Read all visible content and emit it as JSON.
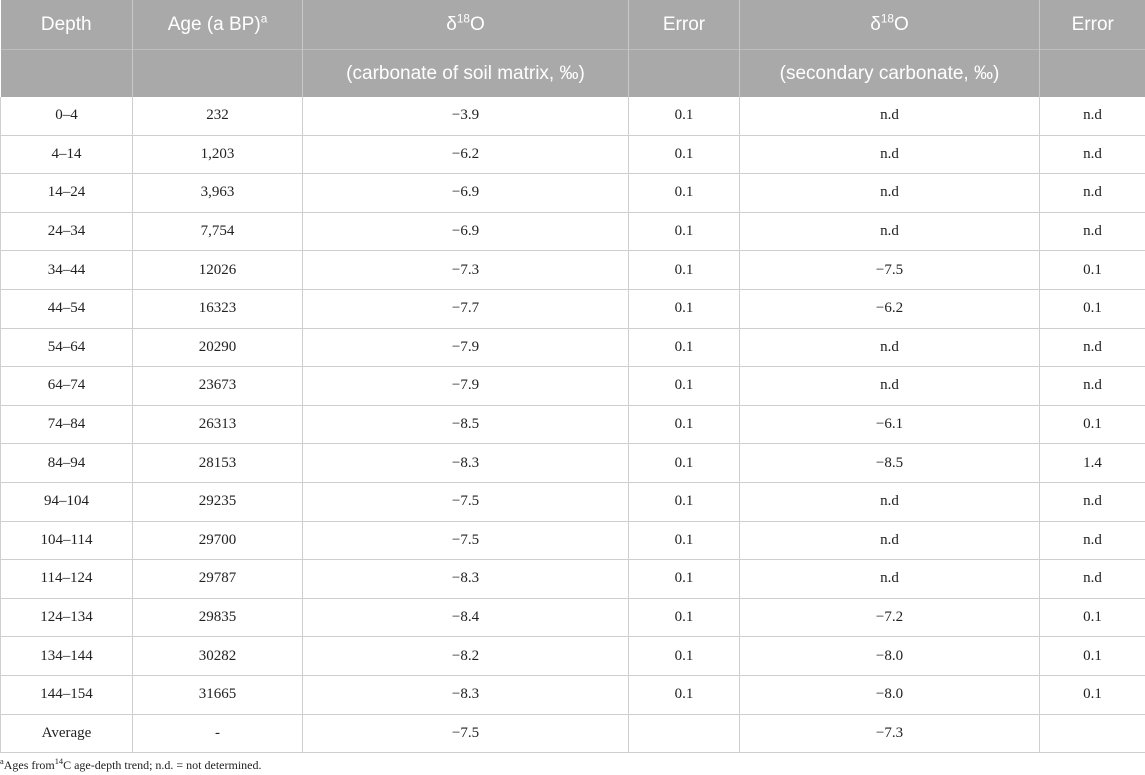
{
  "header": {
    "depth": "Depth",
    "age": "Age (a BP)",
    "age_sup": "a",
    "delta_symbol": "δ",
    "delta_sup": "18",
    "delta_tail": "O",
    "error": "Error",
    "sub_soil": "(carbonate of soil matrix, ‰)",
    "sub_secondary": "(secondary carbonate, ‰)"
  },
  "rows": [
    {
      "depth": "0–4",
      "age": "232",
      "soil": "−3.9",
      "soil_err": "0.1",
      "sec": "n.d",
      "sec_err": "n.d"
    },
    {
      "depth": "4–14",
      "age": "1,203",
      "soil": "−6.2",
      "soil_err": "0.1",
      "sec": "n.d",
      "sec_err": "n.d"
    },
    {
      "depth": "14–24",
      "age": "3,963",
      "soil": "−6.9",
      "soil_err": "0.1",
      "sec": "n.d",
      "sec_err": "n.d"
    },
    {
      "depth": "24–34",
      "age": "7,754",
      "soil": "−6.9",
      "soil_err": "0.1",
      "sec": "n.d",
      "sec_err": "n.d"
    },
    {
      "depth": "34–44",
      "age": "12026",
      "soil": "−7.3",
      "soil_err": "0.1",
      "sec": "−7.5",
      "sec_err": "0.1"
    },
    {
      "depth": "44–54",
      "age": "16323",
      "soil": "−7.7",
      "soil_err": "0.1",
      "sec": "−6.2",
      "sec_err": "0.1"
    },
    {
      "depth": "54–64",
      "age": "20290",
      "soil": "−7.9",
      "soil_err": "0.1",
      "sec": "n.d",
      "sec_err": "n.d"
    },
    {
      "depth": "64–74",
      "age": "23673",
      "soil": "−7.9",
      "soil_err": "0.1",
      "sec": "n.d",
      "sec_err": "n.d"
    },
    {
      "depth": "74–84",
      "age": "26313",
      "soil": "−8.5",
      "soil_err": "0.1",
      "sec": "−6.1",
      "sec_err": "0.1"
    },
    {
      "depth": "84–94",
      "age": "28153",
      "soil": "−8.3",
      "soil_err": "0.1",
      "sec": "−8.5",
      "sec_err": "1.4"
    },
    {
      "depth": "94–104",
      "age": "29235",
      "soil": "−7.5",
      "soil_err": "0.1",
      "sec": "n.d",
      "sec_err": "n.d"
    },
    {
      "depth": "104–114",
      "age": "29700",
      "soil": "−7.5",
      "soil_err": "0.1",
      "sec": "n.d",
      "sec_err": "n.d"
    },
    {
      "depth": "114–124",
      "age": "29787",
      "soil": "−8.3",
      "soil_err": "0.1",
      "sec": "n.d",
      "sec_err": "n.d"
    },
    {
      "depth": "124–134",
      "age": "29835",
      "soil": "−8.4",
      "soil_err": "0.1",
      "sec": "−7.2",
      "sec_err": "0.1"
    },
    {
      "depth": "134–144",
      "age": "30282",
      "soil": "−8.2",
      "soil_err": "0.1",
      "sec": "−8.0",
      "sec_err": "0.1"
    },
    {
      "depth": "144–154",
      "age": "31665",
      "soil": "−8.3",
      "soil_err": "0.1",
      "sec": "−8.0",
      "sec_err": "0.1"
    },
    {
      "depth": "Average",
      "age": "-",
      "soil": "−7.5",
      "soil_err": "",
      "sec": "−7.3",
      "sec_err": ""
    }
  ],
  "footnote": {
    "mark": "a",
    "text_before": "Ages from",
    "sup": "14",
    "text_after": "C age-depth trend; n.d. = not determined."
  },
  "colors": {
    "header_bg": "#a9a9a9",
    "header_text": "#ffffff",
    "grid": "#cfcfcf"
  }
}
